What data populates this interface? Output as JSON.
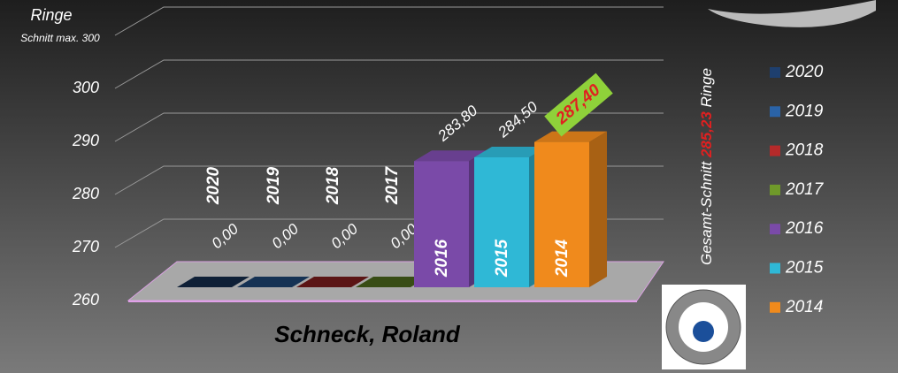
{
  "chart_data": {
    "type": "bar3d",
    "title": "Ringe",
    "subtitle": "Schnitt max. 300",
    "x_label": "Schneck, Roland",
    "annotation": {
      "text": "Gesamt-Schnitt",
      "value": "285,23",
      "unit": "Ringe"
    },
    "categories": [
      "2020",
      "2019",
      "2018",
      "2017",
      "2016",
      "2015",
      "2014"
    ],
    "values": [
      0,
      0,
      0,
      0,
      283.8,
      284.5,
      287.4
    ],
    "value_labels": [
      "0,00",
      "0,00",
      "0,00",
      "0,00",
      "283,80",
      "284,50",
      "287,40"
    ],
    "colors": [
      "#1e3f6e",
      "#2a63a8",
      "#b52a2a",
      "#6f9a2a",
      "#7a4aa8",
      "#2fb8d6",
      "#f08a1c"
    ],
    "ylim": [
      260,
      310
    ],
    "yticks": [
      260,
      270,
      280,
      290,
      300
    ],
    "grid": true
  }
}
